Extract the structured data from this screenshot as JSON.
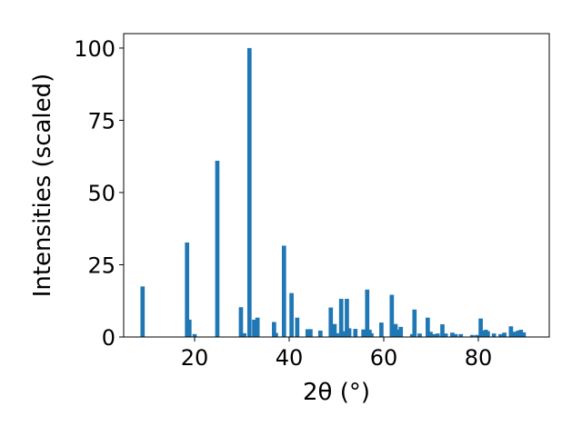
{
  "chart_data": {
    "type": "bar",
    "title": "",
    "xlabel": "2θ (°)",
    "ylabel": "Intensities (scaled)",
    "xlim": [
      5,
      95
    ],
    "ylim": [
      0,
      105
    ],
    "x_ticks": [
      20,
      40,
      60,
      80
    ],
    "y_ticks": [
      0,
      25,
      50,
      75,
      100
    ],
    "grid": false,
    "bar_color": "#1f77b4",
    "bar_width": 0.9,
    "series": [
      {
        "x": [
          9.0,
          18.4,
          18.9,
          20.0,
          24.8,
          29.8,
          30.5,
          31.6,
          32.6,
          33.3,
          36.8,
          37.2,
          38.9,
          40.5,
          41.7,
          43.9,
          44.5,
          46.6,
          48.8,
          49.6,
          50.1,
          51.0,
          51.5,
          52.2,
          52.7,
          54.0,
          55.7,
          56.5,
          57.0,
          57.4,
          59.5,
          61.7,
          62.5,
          63.0,
          63.6,
          66.0,
          66.5,
          67.6,
          69.3,
          69.9,
          70.6,
          71.4,
          72.4,
          73.1,
          74.5,
          75.2,
          76.3,
          78.7,
          79.7,
          80.5,
          81.0,
          81.6,
          82.0,
          83.3,
          84.7,
          85.5,
          86.9,
          87.6,
          88.4,
          89.0,
          89.6
        ],
        "values": [
          17.5,
          32.7,
          6.0,
          1.0,
          61.0,
          10.3,
          1.3,
          100.0,
          6.0,
          6.7,
          5.2,
          1.4,
          31.6,
          15.2,
          6.7,
          2.7,
          2.7,
          2.2,
          10.2,
          4.5,
          1.3,
          13.2,
          2.0,
          13.2,
          3.0,
          2.8,
          2.6,
          16.4,
          2.5,
          1.3,
          5.0,
          14.6,
          4.5,
          2.5,
          3.5,
          1.0,
          9.5,
          1.2,
          6.7,
          1.8,
          1.0,
          1.2,
          4.4,
          1.2,
          1.5,
          1.0,
          1.0,
          0.7,
          0.7,
          6.4,
          2.2,
          2.5,
          2.0,
          1.2,
          1.0,
          1.5,
          3.7,
          1.8,
          2.2,
          2.5,
          1.6
        ]
      }
    ]
  }
}
